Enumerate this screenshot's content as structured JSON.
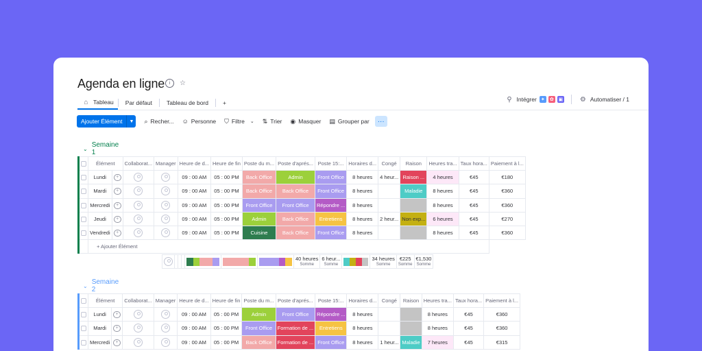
{
  "board": {
    "title": "Agenda en ligne",
    "tabs": [
      "Tableau",
      "Par défaut",
      "Tableau de bord"
    ],
    "add_tab": "+",
    "integrate_label": "Intégrer",
    "automate_label": "Automatiser / 1"
  },
  "toolbar": {
    "add_item": "Ajouter Élément",
    "search": "Recher...",
    "person": "Personne",
    "filter": "Filtre",
    "sort": "Trier",
    "hide": "Masquer",
    "group_by": "Grouper par",
    "more": "···"
  },
  "columns": [
    "Élément",
    "Collaborat...",
    "Manager",
    "Heure de d...",
    "Heure de fin",
    "Poste du m...",
    "Poste d'aprés...",
    "Poste 15:...",
    "Horaires d...",
    "Congé",
    "Raison",
    "Heures tra...",
    "Taux hora...",
    "Paiement à l..."
  ],
  "colors": {
    "background": "#6b66f5",
    "back_office": "#f2a9a9",
    "admin": "#9cd03b",
    "front_office": "#a99cf0",
    "repondre": "#b45bc6",
    "entretiens": "#f6c343",
    "cuisine": "#2e7d4f",
    "formation": "#e2445c",
    "raison_red": "#e2445c",
    "raison_teal": "#4eccc6",
    "raison_olive": "#c4b012",
    "raison_grey": "#c4c4c4",
    "hours_pink": "#fde8f8",
    "group1": "#037f4c",
    "group2": "#579bfc"
  },
  "groups": [
    {
      "title": "Semaine 1",
      "add_item": "+ Ajouter Élément",
      "rows": [
        {
          "name": "Lundi",
          "start": "09 : 00 AM",
          "end": "05 : 00 PM",
          "morning": "Back Office",
          "afternoon": "Admin",
          "p15": "Front Office",
          "horaires": "8 heures",
          "conge": "4 heur...",
          "raison": "Raison ...",
          "heures": "4 heures",
          "taux": "€45",
          "paiement": "€180"
        },
        {
          "name": "Mardi",
          "start": "09 : 00 AM",
          "end": "05 : 00 PM",
          "morning": "Back Office",
          "afternoon": "Back Office",
          "p15": "Front Office",
          "horaires": "8 heures",
          "conge": "",
          "raison": "Maladie",
          "heures": "8 heures",
          "taux": "€45",
          "paiement": "€360"
        },
        {
          "name": "Mercredi",
          "start": "09 : 00 AM",
          "end": "05 : 00 PM",
          "morning": "Front Office",
          "afternoon": "Front Office",
          "p15": "Répondre ...",
          "horaires": "8 heures",
          "conge": "",
          "raison": "",
          "heures": "8 heures",
          "taux": "€45",
          "paiement": "€360"
        },
        {
          "name": "Jeudi",
          "start": "09 : 00 AM",
          "end": "05 : 00 PM",
          "morning": "Admin",
          "afternoon": "Back Office",
          "p15": "Entretiens",
          "horaires": "8 heures",
          "conge": "2 heur...",
          "raison": "Non exp...",
          "heures": "6 heures",
          "taux": "€45",
          "paiement": "€270"
        },
        {
          "name": "Vendredi",
          "start": "09 : 00 AM",
          "end": "05 : 00 PM",
          "morning": "Cuisine",
          "afternoon": "Back Office",
          "p15": "Front Office",
          "horaires": "8 heures",
          "conge": "",
          "raison": "",
          "heures": "8 heures",
          "taux": "€45",
          "paiement": "€360"
        }
      ],
      "summary": {
        "horaires": "40 heures",
        "conge": "6 heur...",
        "heures": "34 heures",
        "taux": "€225",
        "paiement": "€1,530",
        "label": "Somme"
      }
    },
    {
      "title": "Semaine 2",
      "rows": [
        {
          "name": "Lundi",
          "start": "09 : 00 AM",
          "end": "05 : 00 PM",
          "morning": "Admin",
          "afternoon": "Front Office",
          "p15": "Répondre ...",
          "horaires": "8 heures",
          "conge": "",
          "raison": "",
          "heures": "8 heures",
          "taux": "€45",
          "paiement": "€360"
        },
        {
          "name": "Mardi",
          "start": "09 : 00 AM",
          "end": "05 : 00 PM",
          "morning": "Front Office",
          "afternoon": "Formation de ...",
          "p15": "Entretiens",
          "horaires": "8 heures",
          "conge": "",
          "raison": "",
          "heures": "8 heures",
          "taux": "€45",
          "paiement": "€360"
        },
        {
          "name": "Mercredi",
          "start": "09 : 00 AM",
          "end": "05 : 00 PM",
          "morning": "Back Office",
          "afternoon": "Formation de ...",
          "p15": "Front Office",
          "horaires": "8 heures",
          "conge": "1 heur...",
          "raison": "Maladie",
          "heures": "7 heures",
          "taux": "€45",
          "paiement": "€315"
        }
      ]
    }
  ]
}
